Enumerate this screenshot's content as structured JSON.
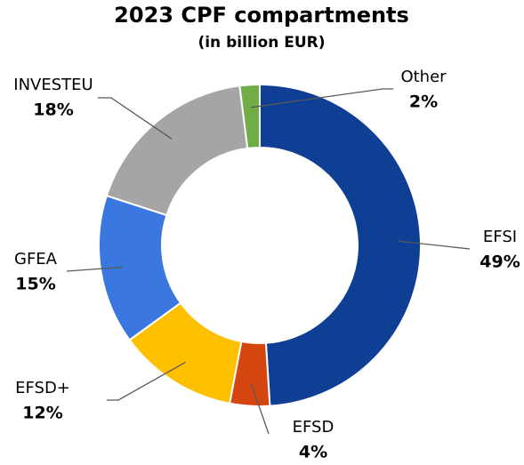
{
  "chart_data": {
    "type": "donut",
    "title": "2023 CPF compartments",
    "subtitle": "(in billion EUR)",
    "categories": [
      "EFSI",
      "EFSD",
      "EFSD+",
      "GFEA",
      "INVESTEU",
      "Other"
    ],
    "values": [
      49,
      4,
      12,
      15,
      18,
      2
    ],
    "value_labels": [
      "49%",
      "4%",
      "12%",
      "15%",
      "18%",
      "2%"
    ],
    "colors": [
      "#0e3f94",
      "#d4450f",
      "#ffc000",
      "#3a78e0",
      "#a5a5a5",
      "#70ad47"
    ]
  }
}
